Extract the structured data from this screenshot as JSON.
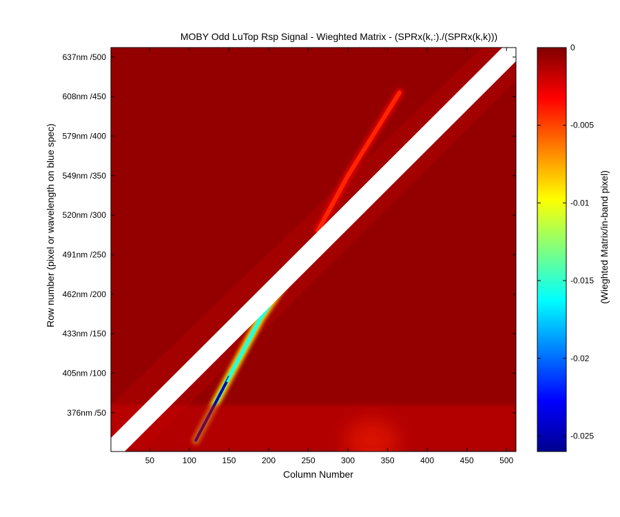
{
  "chart_data": {
    "type": "heatmap",
    "title": "MOBY Odd LuTop Rsp Signal - Wieghted Matrix - (SPRx(k,:)./(SPRx(k,k)))",
    "xlabel": "Column Number",
    "ylabel": "Row number (pixel or wavelength on blue spec)",
    "colorbar_label": "(Wieghted Matrix/in-band pixel)",
    "xlim": [
      1,
      512
    ],
    "ylim": [
      1,
      512
    ],
    "x_ticks": [
      50,
      100,
      150,
      200,
      250,
      300,
      350,
      400,
      450,
      500
    ],
    "y_ticks": [
      {
        "value": 50,
        "label": "376nm /50"
      },
      {
        "value": 100,
        "label": "405nm /100"
      },
      {
        "value": 150,
        "label": "433nm /150"
      },
      {
        "value": 200,
        "label": "462nm /200"
      },
      {
        "value": 250,
        "label": "491nm /250"
      },
      {
        "value": 300,
        "label": "520nm /300"
      },
      {
        "value": 350,
        "label": "549nm /350"
      },
      {
        "value": 400,
        "label": "579nm /400"
      },
      {
        "value": 450,
        "label": "608nm /450"
      },
      {
        "value": 500,
        "label": "637nm /500"
      }
    ],
    "colorbar_range": [
      -0.026,
      0
    ],
    "colorbar_ticks": [
      0,
      -0.005,
      -0.01,
      -0.015,
      -0.02,
      -0.025
    ],
    "colormap": "jet",
    "background_value": -0.0005,
    "diagonal_mask": {
      "from": [
        1,
        1
      ],
      "to": [
        512,
        512
      ],
      "color": "#ffffff"
    },
    "features": [
      {
        "name": "lower streak",
        "points": [
          [
            108,
            15
          ],
          [
            150,
            95
          ],
          [
            190,
            170
          ],
          [
            220,
            215
          ]
        ],
        "min_value": -0.0255
      },
      {
        "name": "upper streak",
        "points": [
          [
            262,
            280
          ],
          [
            300,
            350
          ],
          [
            365,
            455
          ]
        ],
        "min_value": -0.007
      },
      {
        "name": "bottom glow",
        "points": [
          [
            300,
            30
          ],
          [
            330,
            10
          ],
          [
            350,
            20
          ]
        ],
        "min_value": -0.0045
      }
    ]
  }
}
